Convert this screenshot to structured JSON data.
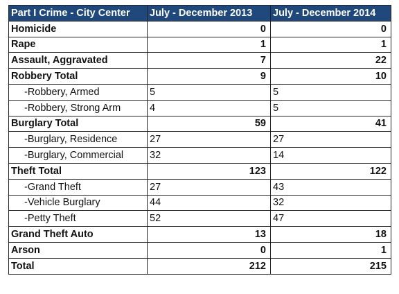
{
  "table": {
    "headers": [
      "Part I Crime - City Center",
      "July - December 2013",
      "July - December 2014"
    ],
    "rows": [
      {
        "kind": "total",
        "label": "Homicide",
        "v2013": "0",
        "v2014": "0"
      },
      {
        "kind": "total",
        "label": "Rape",
        "v2013": "1",
        "v2014": "1"
      },
      {
        "kind": "total",
        "label": "Assault, Aggravated",
        "v2013": "7",
        "v2014": "22"
      },
      {
        "kind": "total",
        "label": "Robbery Total",
        "v2013": "9",
        "v2014": "10"
      },
      {
        "kind": "sub",
        "label": "-Robbery, Armed",
        "v2013": "5",
        "v2014": "5"
      },
      {
        "kind": "sub",
        "label": "-Robbery, Strong Arm",
        "v2013": "4",
        "v2014": "5"
      },
      {
        "kind": "total",
        "label": "Burglary Total",
        "v2013": "59",
        "v2014": "41"
      },
      {
        "kind": "sub",
        "label": "-Burglary, Residence",
        "v2013": "27",
        "v2014": "27"
      },
      {
        "kind": "sub",
        "label": "-Burglary, Commercial",
        "v2013": "32",
        "v2014": "14"
      },
      {
        "kind": "total",
        "label": "Theft Total",
        "v2013": "123",
        "v2014": "122"
      },
      {
        "kind": "sub",
        "label": "-Grand Theft",
        "v2013": "27",
        "v2014": "43"
      },
      {
        "kind": "sub",
        "label": "-Vehicle Burglary",
        "v2013": "44",
        "v2014": "32"
      },
      {
        "kind": "sub",
        "label": "-Petty Theft",
        "v2013": "52",
        "v2014": "47"
      },
      {
        "kind": "total",
        "label": "Grand Theft Auto",
        "v2013": "13",
        "v2014": "18"
      },
      {
        "kind": "total",
        "label": "Arson",
        "v2013": "0",
        "v2014": "1"
      },
      {
        "kind": "total",
        "label": "Total",
        "v2013": "212",
        "v2014": "215"
      }
    ]
  },
  "colors": {
    "header_bg": "#1f497d",
    "header_text": "#ffffff",
    "border": "#222222"
  }
}
